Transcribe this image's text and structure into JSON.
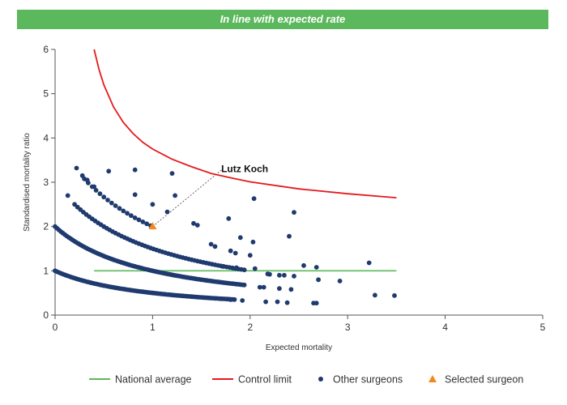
{
  "banner": {
    "text": "In line with expected rate",
    "color": "#5cb85c"
  },
  "chart_data": {
    "type": "scatter",
    "xlabel": "Expected mortality",
    "ylabel": "Standardised mortality ratio",
    "xlim": [
      0,
      5
    ],
    "ylim": [
      0,
      6
    ],
    "xticks": [
      0,
      1,
      2,
      3,
      4,
      5
    ],
    "yticks": [
      0,
      1,
      2,
      3,
      4,
      5,
      6
    ],
    "grid": false,
    "legend_placement": "bottom",
    "colors": {
      "national_average": "#5cb85c",
      "control_limit": "#e41a1c",
      "other_surgeons": "#1f3a6e",
      "selected_surgeon": "#f08a1c"
    },
    "legend": [
      {
        "label": "National average",
        "kind": "line",
        "color": "#5cb85c"
      },
      {
        "label": "Control limit",
        "kind": "line",
        "color": "#e41a1c"
      },
      {
        "label": "Other surgeons",
        "kind": "dot",
        "color": "#1f3a6e"
      },
      {
        "label": "Selected surgeon",
        "kind": "triangle",
        "color": "#f08a1c"
      }
    ],
    "national_average": {
      "x": [
        0.4,
        3.5
      ],
      "y": [
        1,
        1
      ]
    },
    "control_limit": {
      "x": [
        0.4,
        0.45,
        0.5,
        0.6,
        0.7,
        0.8,
        0.9,
        1.0,
        1.2,
        1.4,
        1.6,
        1.8,
        2.0,
        2.5,
        3.0,
        3.5
      ],
      "y": [
        6.0,
        5.55,
        5.2,
        4.7,
        4.35,
        4.1,
        3.9,
        3.75,
        3.52,
        3.35,
        3.2,
        3.1,
        3.01,
        2.85,
        2.74,
        2.65
      ]
    },
    "curve_bands": [
      {
        "k": 0,
        "from": 0.0,
        "to": 1.85,
        "step": 0.02
      },
      {
        "k": 1,
        "from": 0.0,
        "to": 1.95,
        "step": 0.02
      },
      {
        "k": 2,
        "from": 0.2,
        "to": 1.95,
        "step": 0.03
      },
      {
        "k": 3,
        "from": 0.3,
        "to": 1.0,
        "step": 0.04
      }
    ],
    "other_surgeons_scatter": [
      [
        0.22,
        3.32
      ],
      [
        0.28,
        3.15
      ],
      [
        0.33,
        3.05
      ],
      [
        0.4,
        2.9
      ],
      [
        0.55,
        3.25
      ],
      [
        0.82,
        3.28
      ],
      [
        1.2,
        3.2
      ],
      [
        0.13,
        2.7
      ],
      [
        0.82,
        2.72
      ],
      [
        1.0,
        2.5
      ],
      [
        1.23,
        2.7
      ],
      [
        1.15,
        2.33
      ],
      [
        1.42,
        2.07
      ],
      [
        1.46,
        2.03
      ],
      [
        1.6,
        1.6
      ],
      [
        1.64,
        1.55
      ],
      [
        1.78,
        2.18
      ],
      [
        1.9,
        1.75
      ],
      [
        2.04,
        2.63
      ],
      [
        2.03,
        1.65
      ],
      [
        2.45,
        2.32
      ],
      [
        2.4,
        1.78
      ],
      [
        1.8,
        1.45
      ],
      [
        1.85,
        1.4
      ],
      [
        2.0,
        1.35
      ],
      [
        1.72,
        1.1
      ],
      [
        1.86,
        1.07
      ],
      [
        2.05,
        1.05
      ],
      [
        2.18,
        0.93
      ],
      [
        2.3,
        0.9
      ],
      [
        2.55,
        1.12
      ],
      [
        2.68,
        1.08
      ],
      [
        2.7,
        0.8
      ],
      [
        2.92,
        0.77
      ],
      [
        3.22,
        1.18
      ],
      [
        3.28,
        0.45
      ],
      [
        3.48,
        0.44
      ],
      [
        2.1,
        0.63
      ],
      [
        2.14,
        0.63
      ],
      [
        2.3,
        0.6
      ],
      [
        2.42,
        0.58
      ],
      [
        1.8,
        0.35
      ],
      [
        1.92,
        0.33
      ],
      [
        2.16,
        0.3
      ],
      [
        2.28,
        0.3
      ],
      [
        2.38,
        0.28
      ],
      [
        2.65,
        0.27
      ],
      [
        2.68,
        0.27
      ],
      [
        2.2,
        0.92
      ],
      [
        2.35,
        0.9
      ],
      [
        2.45,
        0.88
      ]
    ],
    "selected_surgeon": {
      "x": 1.0,
      "y": 2.0,
      "label": "Lutz Koch",
      "label_x": 1.72,
      "label_y": 3.3
    }
  }
}
